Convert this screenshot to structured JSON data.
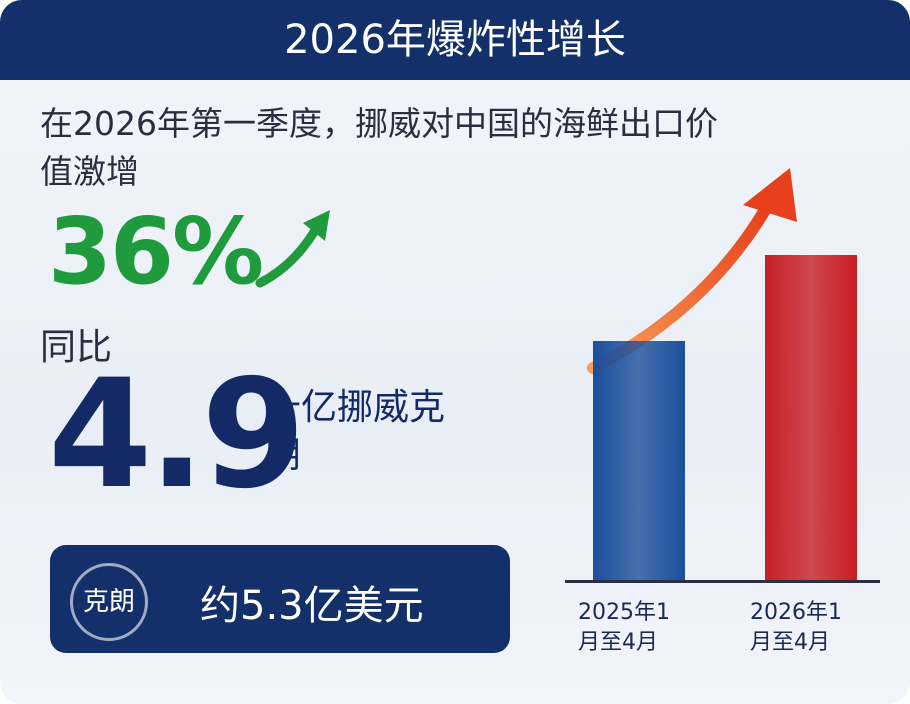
{
  "header": {
    "title": "2026年爆炸性增长"
  },
  "intro": "在2026年第一季度，挪威对中国的海鲜出口价值激增",
  "growth": "36%",
  "yoy": "同比",
  "amount": "4.9",
  "unit": "十亿挪威克朗",
  "badge": {
    "icon": "克朗",
    "text": "约5.3亿美元"
  },
  "chart_data": {
    "type": "bar",
    "categories": [
      "2025年1月至4月",
      "2026年1月至4月"
    ],
    "values": [
      3.6,
      4.9
    ],
    "colors": [
      "#1d4f9c",
      "#c81e25"
    ]
  }
}
